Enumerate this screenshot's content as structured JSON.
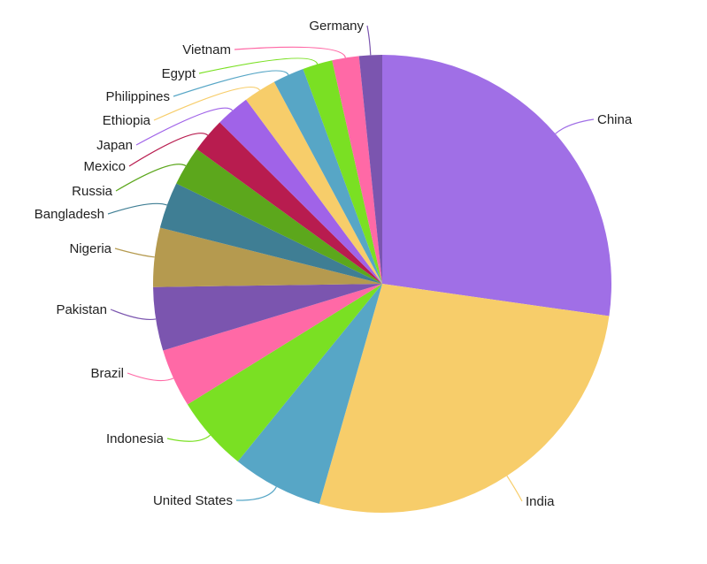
{
  "chart_data": {
    "type": "pie",
    "title": "",
    "slices": [
      {
        "label": "China",
        "value": 1412,
        "color": "#A06FE6"
      },
      {
        "label": "India",
        "value": 1408,
        "color": "#F7CD6A"
      },
      {
        "label": "United States",
        "value": 333,
        "color": "#57A6C6"
      },
      {
        "label": "Indonesia",
        "value": 275,
        "color": "#7AE023"
      },
      {
        "label": "Brazil",
        "value": 214,
        "color": "#FF69A6"
      },
      {
        "label": "Pakistan",
        "value": 232,
        "color": "#7B55AF"
      },
      {
        "label": "Nigeria",
        "value": 216,
        "color": "#B59A4F"
      },
      {
        "label": "Bangladesh",
        "value": 170,
        "color": "#3F7E94"
      },
      {
        "label": "Russia",
        "value": 144,
        "color": "#5CA71C"
      },
      {
        "label": "Mexico",
        "value": 127,
        "color": "#B81C4F"
      },
      {
        "label": "Japan",
        "value": 125,
        "color": "#A063E8"
      },
      {
        "label": "Ethiopia",
        "value": 120,
        "color": "#F7CD6A"
      },
      {
        "label": "Philippines",
        "value": 114,
        "color": "#57A6C6"
      },
      {
        "label": "Egypt",
        "value": 109,
        "color": "#7AE023"
      },
      {
        "label": "Vietnam",
        "value": 98,
        "color": "#FF69A6"
      },
      {
        "label": "Germany",
        "value": 84,
        "color": "#7B55AF"
      }
    ]
  }
}
